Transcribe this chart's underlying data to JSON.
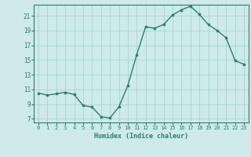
{
  "x": [
    0,
    1,
    2,
    3,
    4,
    5,
    6,
    7,
    8,
    9,
    10,
    11,
    12,
    13,
    14,
    15,
    16,
    17,
    18,
    19,
    20,
    21,
    22,
    23
  ],
  "y": [
    10.5,
    10.2,
    10.4,
    10.6,
    10.3,
    8.8,
    8.6,
    7.3,
    7.1,
    8.6,
    11.5,
    15.7,
    19.5,
    19.3,
    19.8,
    21.1,
    21.8,
    22.3,
    21.2,
    19.8,
    19.0,
    18.0,
    14.9,
    14.4
  ],
  "xlabel": "Humidex (Indice chaleur)",
  "yticks": [
    7,
    9,
    11,
    13,
    15,
    17,
    19,
    21
  ],
  "xticks": [
    0,
    1,
    2,
    3,
    4,
    5,
    6,
    7,
    8,
    9,
    10,
    11,
    12,
    13,
    14,
    15,
    16,
    17,
    18,
    19,
    20,
    21,
    22,
    23
  ],
  "ylim": [
    6.5,
    22.5
  ],
  "xlim": [
    -0.5,
    23.5
  ],
  "line_color": "#2e7d6e",
  "bg_color": "#ceeaea",
  "grid_color": "#aad4d4",
  "tick_color": "#2e7d6e",
  "marker": "s",
  "marker_size": 2.0,
  "linewidth": 1.0
}
